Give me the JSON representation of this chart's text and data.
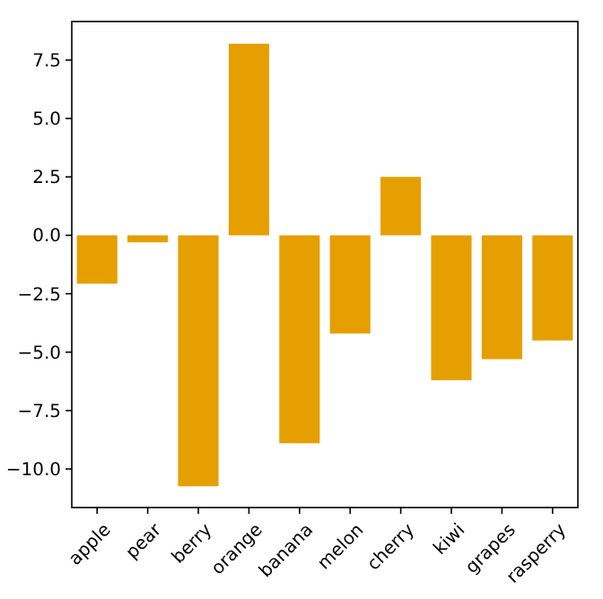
{
  "chart_data": {
    "type": "bar",
    "categories": [
      "apple",
      "pear",
      "berry",
      "orange",
      "banana",
      "melon",
      "cherry",
      "kiwi",
      "grapes",
      "rasperry"
    ],
    "values": [
      -2.07,
      -0.3,
      -10.74,
      8.2,
      -8.9,
      -4.2,
      2.5,
      -6.2,
      -5.3,
      -4.5
    ],
    "color": "#e69f00",
    "ylim": [
      -11.65,
      9.15
    ],
    "yticks": [
      {
        "value": -10,
        "label": "−10.0"
      },
      {
        "value": -7.5,
        "label": "−7.5"
      },
      {
        "value": -5,
        "label": "−5.0"
      },
      {
        "value": -2.5,
        "label": "−2.5"
      },
      {
        "value": 0,
        "label": "0.0"
      },
      {
        "value": 2.5,
        "label": "2.5"
      },
      {
        "value": 5,
        "label": "5.0"
      },
      {
        "value": 7.5,
        "label": "7.5"
      }
    ],
    "grid": false
  }
}
